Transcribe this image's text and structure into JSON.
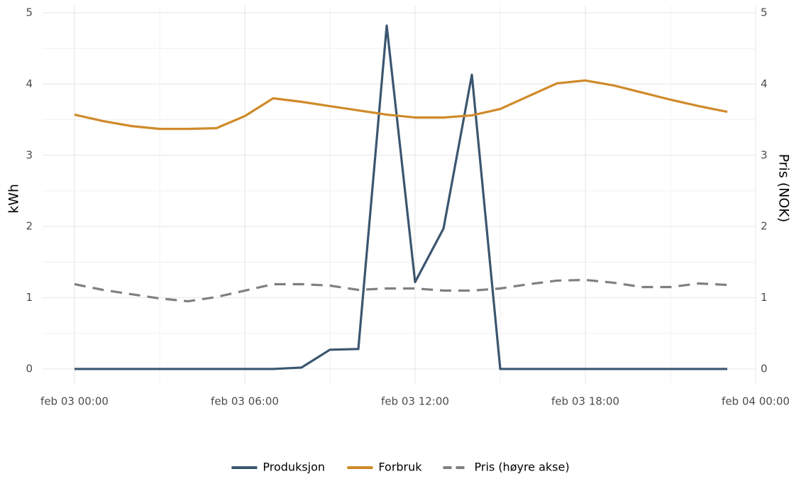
{
  "chart_data": {
    "type": "line",
    "y_label": "kWh",
    "y2_label": "Pris (NOK)",
    "x": [
      "feb 03 00:00",
      "feb 03 01:00",
      "feb 03 02:00",
      "feb 03 03:00",
      "feb 03 04:00",
      "feb 03 05:00",
      "feb 03 06:00",
      "feb 03 07:00",
      "feb 03 08:00",
      "feb 03 09:00",
      "feb 03 10:00",
      "feb 03 11:00",
      "feb 03 12:00",
      "feb 03 13:00",
      "feb 03 14:00",
      "feb 03 15:00",
      "feb 03 16:00",
      "feb 03 17:00",
      "feb 03 18:00",
      "feb 03 19:00",
      "feb 03 20:00",
      "feb 03 21:00",
      "feb 03 22:00",
      "feb 03 23:00"
    ],
    "xlim": [
      "feb 03 00:00",
      "feb 04 00:00"
    ],
    "xticks": [
      "feb 03 00:00",
      "feb 03 06:00",
      "feb 03 12:00",
      "feb 03 18:00",
      "feb 04 00:00"
    ],
    "ylim": [
      -0.2,
      5.1
    ],
    "yticks": [
      0,
      1,
      2,
      3,
      4,
      5
    ],
    "y2lim": [
      -0.2,
      5.1
    ],
    "y2ticks": [
      0,
      1,
      2,
      3,
      4,
      5
    ],
    "grid": true,
    "legend": "bottom",
    "series": [
      {
        "name": "Produksjon",
        "color": "#3b5670",
        "dash": false,
        "values": [
          0,
          0,
          0,
          0,
          0,
          0,
          0,
          0,
          0.02,
          0.27,
          0.28,
          4.82,
          1.22,
          1.97,
          4.13,
          0,
          0,
          0,
          0,
          0,
          0,
          0,
          0,
          0
        ]
      },
      {
        "name": "Forbruk",
        "color": "#d08a2a",
        "dash": false,
        "values": [
          3.57,
          3.48,
          3.41,
          3.37,
          3.37,
          3.38,
          3.55,
          3.8,
          3.75,
          3.69,
          3.63,
          3.57,
          3.53,
          3.53,
          3.56,
          3.65,
          3.83,
          4.01,
          4.05,
          3.98,
          3.88,
          3.78,
          3.69,
          3.61
        ]
      },
      {
        "name": "Pris (høyre akse)",
        "color": "#808080",
        "dash": true,
        "axis": "y2",
        "values": [
          1.19,
          1.11,
          1.05,
          0.99,
          0.95,
          1.01,
          1.1,
          1.19,
          1.19,
          1.17,
          1.11,
          1.13,
          1.13,
          1.1,
          1.1,
          1.13,
          1.19,
          1.24,
          1.25,
          1.21,
          1.15,
          1.15,
          1.2,
          1.18
        ]
      }
    ]
  }
}
